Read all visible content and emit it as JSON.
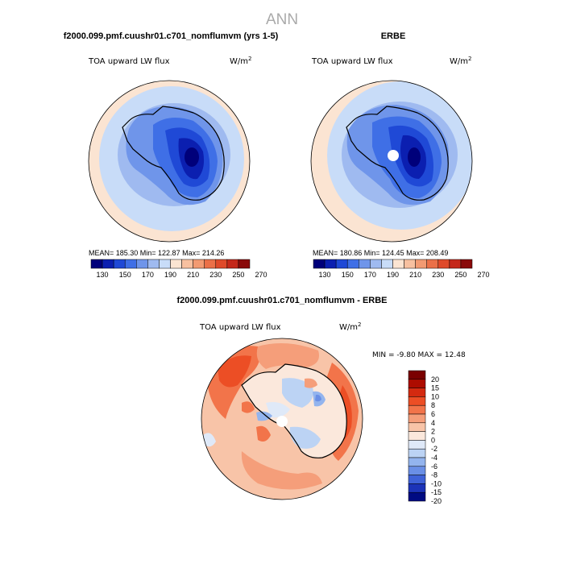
{
  "page_title": "ANN",
  "panels": {
    "model": {
      "heading": "f2000.099.pmf.cuushr01.c701_nomflumvm (yrs 1-5)",
      "variable": "TOA upward LW flux",
      "unit_base": "W/m",
      "unit_exp": "2",
      "stats": "MEAN= 185.30   Min= 122.87   Max= 214.26",
      "colorbar_ticks": [
        "130",
        "150",
        "170",
        "190",
        "210",
        "230",
        "250",
        "270"
      ]
    },
    "obs": {
      "heading": "ERBE",
      "variable": "TOA upward LW flux",
      "unit_base": "W/m",
      "unit_exp": "2",
      "stats": "MEAN= 180.86   Min= 124.45   Max= 208.49",
      "colorbar_ticks": [
        "130",
        "150",
        "170",
        "190",
        "210",
        "230",
        "250",
        "270"
      ]
    },
    "diff": {
      "heading": "f2000.099.pmf.cuushr01.c701_nomflumvm - ERBE",
      "variable": "TOA upward LW flux",
      "unit_base": "W/m",
      "unit_exp": "2",
      "stats": "MIN =   -9.80 MAX =   12.48",
      "colorbar_ticks": [
        "20",
        "15",
        "10",
        "8",
        "6",
        "4",
        "2",
        "0",
        "-2",
        "-4",
        "-6",
        "-8",
        "-10",
        "-15",
        "-20"
      ]
    }
  },
  "colors": {
    "abs_scale": [
      "#00007a",
      "#0b1fb0",
      "#1f49d6",
      "#3f6fe6",
      "#6f95ea",
      "#9fbaf0",
      "#c8dcf8",
      "#fbe4d2",
      "#f7c0a0",
      "#f29a72",
      "#eb7048",
      "#df4a2a",
      "#c4281a",
      "#8a0a0a"
    ],
    "diff_scale": [
      "#7a0000",
      "#ad0c00",
      "#d42a10",
      "#ec4e25",
      "#f2744a",
      "#f59e7a",
      "#f8c4a8",
      "#fbe8dc",
      "#dfe9f8",
      "#bcd3f4",
      "#93b4ee",
      "#6a8fe6",
      "#3f62d8",
      "#1c33b8",
      "#000b82"
    ]
  }
}
